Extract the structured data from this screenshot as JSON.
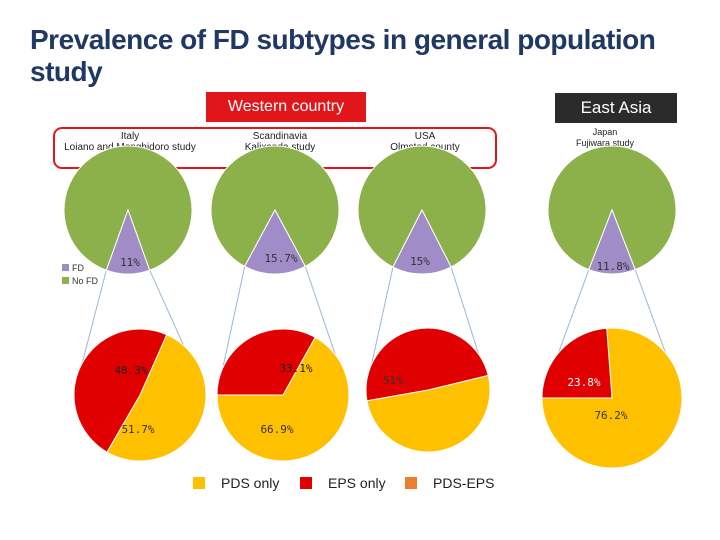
{
  "chart_data": {
    "type": "pie",
    "title": "Prevalence of FD subtypes in general population\nstudy",
    "groups": [
      {
        "label": "Western country",
        "color": "#e0161b"
      },
      {
        "label": "East Asia",
        "color": "#2b2b2b"
      }
    ],
    "studies": [
      {
        "region": "Western country",
        "country": "Italy",
        "study": "Loiano and Monghidoro study",
        "fd_pct_label": "11%",
        "fd": 11,
        "subtypes": [
          {
            "name": "EPS only",
            "value": 48.3,
            "label": "48.3%"
          },
          {
            "name": "PDS only",
            "value": 51.7,
            "label": "51.7%"
          }
        ]
      },
      {
        "region": "Western country",
        "country": "Scandinavia",
        "study": "Kalixanda study",
        "fd_pct_label": "15.7%",
        "fd": 15.7,
        "subtypes": [
          {
            "name": "EPS only",
            "value": 33.1,
            "label": "33.1%"
          },
          {
            "name": "PDS only",
            "value": 66.9,
            "label": "66.9%"
          }
        ]
      },
      {
        "region": "Western country",
        "country": "USA",
        "study": "Olmsted county",
        "fd_pct_label": "15%",
        "fd": 15,
        "subtypes": [
          {
            "name": "EPS only",
            "value": 49,
            "label": ""
          },
          {
            "name": "PDS only",
            "value": 51,
            "label": "51%"
          }
        ]
      },
      {
        "region": "East Asia",
        "country": "Japan",
        "study": "Fujiwara study",
        "fd_pct_label": "11.8%",
        "fd": 11.8,
        "subtypes": [
          {
            "name": "EPS only",
            "value": 23.8,
            "label": "23.8%"
          },
          {
            "name": "PDS only",
            "value": 76.2,
            "label": "76.2%"
          }
        ]
      }
    ],
    "fd_legend": [
      {
        "name": "FD",
        "color": "#a08cc6"
      },
      {
        "name": "No FD",
        "color": "#8cb04a"
      }
    ],
    "subtype_legend": [
      {
        "name": "PDS only",
        "color": "#ffc000"
      },
      {
        "name": "EPS only",
        "color": "#e00000"
      },
      {
        "name": "PDS-EPS",
        "color": "#ed7d31"
      }
    ]
  }
}
